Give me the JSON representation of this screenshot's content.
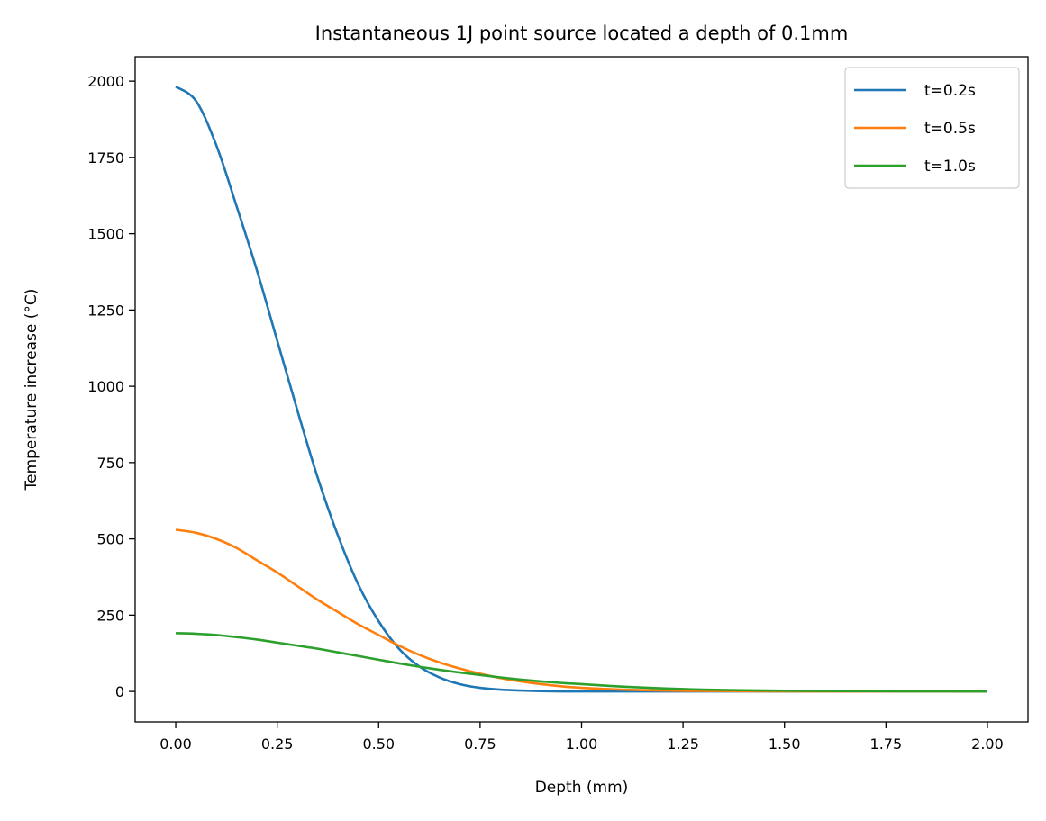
{
  "chart_data": {
    "type": "line",
    "title": "Instantaneous 1J point source located a depth of 0.1mm",
    "xlabel": "Depth (mm)",
    "ylabel": "Temperature increase (°C)",
    "xlim": [
      -0.1,
      2.1
    ],
    "ylim": [
      -100,
      2080
    ],
    "xticks": [
      0.0,
      0.25,
      0.5,
      0.75,
      1.0,
      1.25,
      1.5,
      1.75,
      2.0
    ],
    "xtick_labels": [
      "0.00",
      "0.25",
      "0.50",
      "0.75",
      "1.00",
      "1.25",
      "1.50",
      "1.75",
      "2.00"
    ],
    "yticks": [
      0,
      250,
      500,
      750,
      1000,
      1250,
      1500,
      1750,
      2000
    ],
    "ytick_labels": [
      "0",
      "250",
      "500",
      "750",
      "1000",
      "1250",
      "1500",
      "1750",
      "2000"
    ],
    "grid": false,
    "legend_position": "top-right",
    "x": [
      0.0,
      0.05,
      0.1,
      0.15,
      0.2,
      0.25,
      0.3,
      0.35,
      0.4,
      0.45,
      0.5,
      0.55,
      0.6,
      0.65,
      0.7,
      0.75,
      0.8,
      0.85,
      0.9,
      0.95,
      1.0,
      1.1,
      1.2,
      1.3,
      1.4,
      1.5,
      1.6,
      1.7,
      1.8,
      1.9,
      2.0
    ],
    "series": [
      {
        "name": "t=0.2s",
        "color": "#1f77b4",
        "values": [
          1982,
          1935,
          1790,
          1590,
          1380,
          1150,
          920,
          700,
          510,
          350,
          230,
          140,
          82,
          46,
          24,
          12,
          6,
          3,
          1,
          0,
          0,
          0,
          0,
          0,
          0,
          0,
          0,
          0,
          0,
          0,
          0
        ]
      },
      {
        "name": "t=0.5s",
        "color": "#ff7f0e",
        "values": [
          530,
          520,
          500,
          470,
          430,
          390,
          345,
          300,
          260,
          220,
          185,
          150,
          120,
          95,
          75,
          58,
          44,
          33,
          24,
          17,
          12,
          6,
          3,
          1.5,
          0.7,
          0.3,
          0.1,
          0,
          0,
          0,
          0
        ]
      },
      {
        "name": "t=1.0s",
        "color": "#2ca02c",
        "values": [
          191,
          189,
          185,
          178,
          170,
          160,
          150,
          140,
          128,
          116,
          104,
          92,
          81,
          71,
          62,
          54,
          46,
          39,
          33,
          28,
          24,
          16,
          10,
          6,
          4,
          2.5,
          1.5,
          1,
          0.5,
          0.3,
          0.2
        ]
      }
    ]
  }
}
